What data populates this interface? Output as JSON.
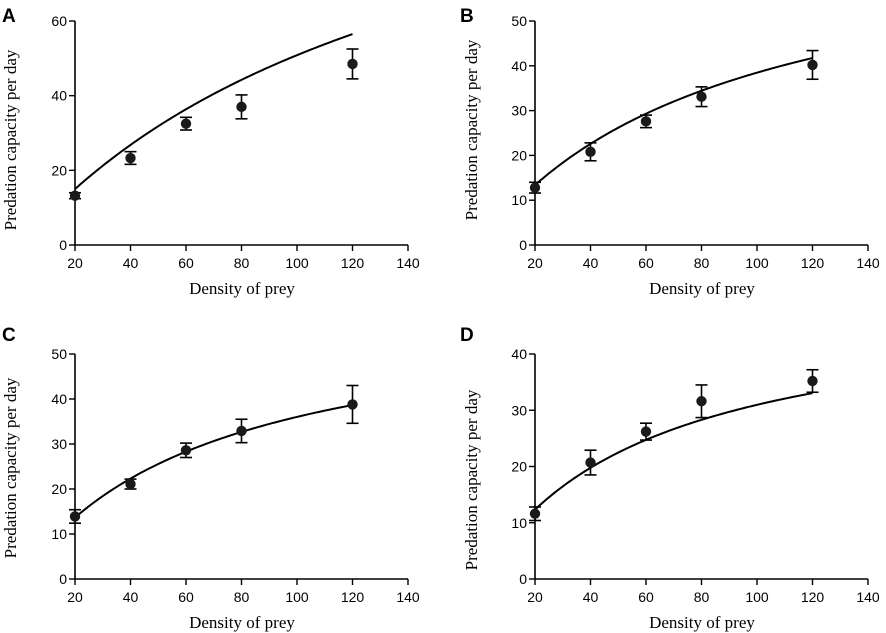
{
  "figure": {
    "x_tick_labels": [
      "20",
      "40",
      "60",
      "80",
      "100",
      "120",
      "140"
    ]
  },
  "chart_data": [
    {
      "type": "scatter",
      "panel": "A",
      "xlabel": "Density of prey",
      "ylabel": "Predation capacity per day",
      "xlim": [
        20,
        140
      ],
      "ylim": [
        0,
        60
      ],
      "y_tick_labels": [
        "0",
        "20",
        "40",
        "60"
      ],
      "x": [
        20,
        40,
        60,
        80,
        120
      ],
      "values": [
        13.2,
        23.3,
        32.5,
        37.0,
        48.5
      ],
      "errors": [
        0.8,
        1.7,
        1.7,
        3.2,
        4.0
      ],
      "fit": {
        "a": 0.85,
        "h": 0.0079
      }
    },
    {
      "type": "scatter",
      "panel": "B",
      "xlabel": "Density of prey",
      "ylabel": "Predation capacity per day",
      "xlim": [
        20,
        140
      ],
      "ylim": [
        0,
        50
      ],
      "y_tick_labels": [
        "0",
        "10",
        "20",
        "30",
        "40",
        "50"
      ],
      "x": [
        20,
        40,
        60,
        80,
        120
      ],
      "values": [
        12.8,
        20.8,
        27.6,
        33.1,
        40.2
      ],
      "errors": [
        1.2,
        2.0,
        1.4,
        2.2,
        3.2
      ],
      "fit": {
        "a": 0.82,
        "h": 0.0138
      }
    },
    {
      "type": "scatter",
      "panel": "C",
      "xlabel": "Density of prey",
      "ylabel": "Predation capacity per day",
      "xlim": [
        20,
        140
      ],
      "ylim": [
        0,
        50
      ],
      "y_tick_labels": [
        "0",
        "10",
        "20",
        "30",
        "40",
        "50"
      ],
      "x": [
        20,
        40,
        60,
        80,
        120
      ],
      "values": [
        13.9,
        21.1,
        28.6,
        32.9,
        38.8
      ],
      "errors": [
        1.5,
        1.1,
        1.6,
        2.6,
        4.2
      ],
      "fit": {
        "a": 0.88,
        "h": 0.0164
      }
    },
    {
      "type": "scatter",
      "panel": "D",
      "xlabel": "Density of prey",
      "ylabel": "Predation capacity per day",
      "xlim": [
        20,
        140
      ],
      "ylim": [
        0,
        40
      ],
      "y_tick_labels": [
        "0",
        "10",
        "20",
        "30",
        "40"
      ],
      "x": [
        20,
        40,
        60,
        80,
        120
      ],
      "values": [
        11.6,
        20.7,
        26.2,
        31.6,
        35.2
      ],
      "errors": [
        1.2,
        2.2,
        1.5,
        2.9,
        2.0
      ],
      "fit": {
        "a": 0.82,
        "h": 0.0201
      }
    }
  ]
}
